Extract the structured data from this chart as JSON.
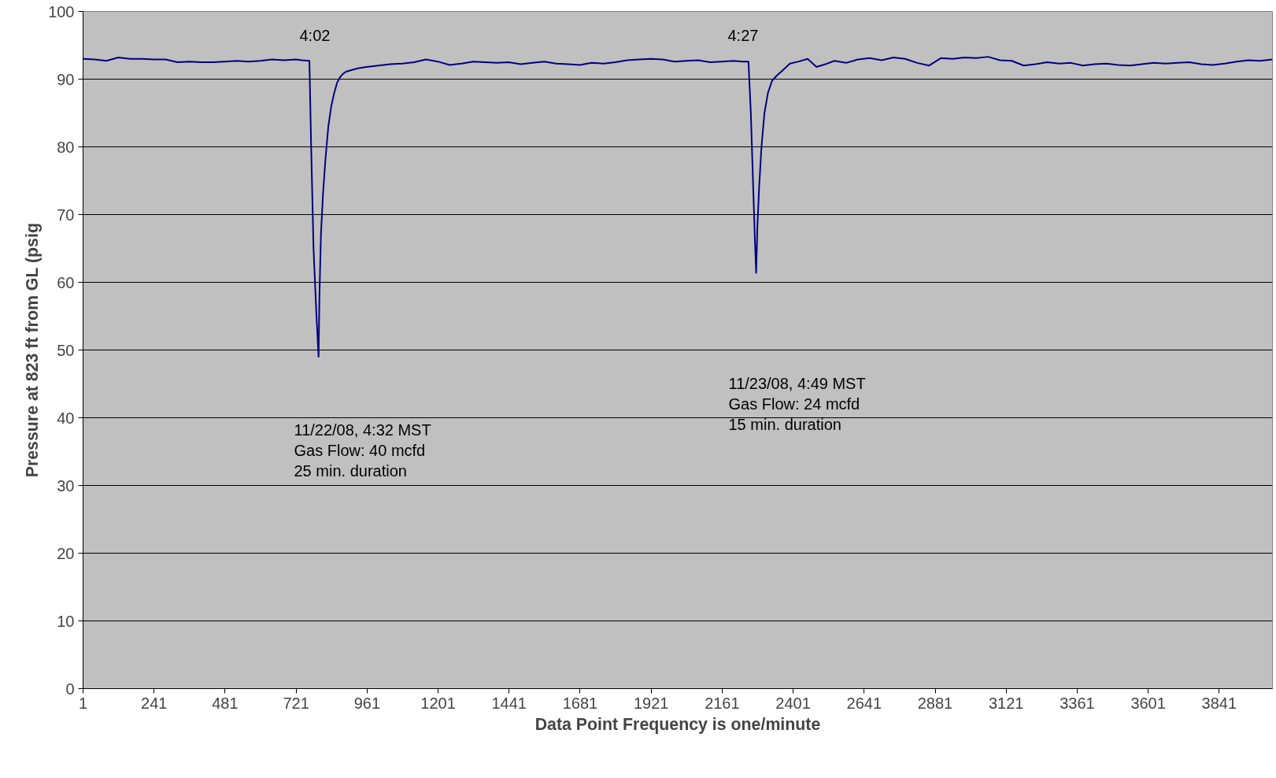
{
  "chart_data": {
    "type": "line",
    "xlabel": "Data Point Frequency is one/minute",
    "ylabel": "Pressure at 823 ft from GL (psig",
    "x": [
      1,
      40,
      80,
      120,
      160,
      200,
      240,
      280,
      320,
      360,
      400,
      440,
      480,
      520,
      560,
      600,
      640,
      680,
      720,
      740,
      766,
      772,
      780,
      790,
      797,
      800,
      805,
      812,
      820,
      830,
      840,
      850,
      860,
      870,
      880,
      890,
      906,
      930,
      960,
      1000,
      1040,
      1080,
      1120,
      1160,
      1200,
      1240,
      1280,
      1320,
      1360,
      1400,
      1440,
      1480,
      1520,
      1560,
      1600,
      1640,
      1680,
      1720,
      1760,
      1800,
      1840,
      1880,
      1920,
      1960,
      2000,
      2040,
      2080,
      2120,
      2160,
      2200,
      2230,
      2250,
      2258,
      2266,
      2272,
      2276,
      2280,
      2286,
      2294,
      2304,
      2316,
      2330,
      2345,
      2363,
      2390,
      2420,
      2450,
      2480,
      2510,
      2540,
      2580,
      2620,
      2660,
      2700,
      2740,
      2780,
      2820,
      2860,
      2900,
      2940,
      2980,
      3020,
      3060,
      3100,
      3140,
      3180,
      3220,
      3260,
      3300,
      3340,
      3380,
      3420,
      3460,
      3500,
      3540,
      3580,
      3620,
      3660,
      3700,
      3740,
      3780,
      3820,
      3860,
      3900,
      3940,
      3980,
      4021
    ],
    "series": [
      {
        "color": "#000080",
        "values": [
          93.0,
          92.9,
          92.7,
          93.2,
          93.0,
          93.0,
          92.9,
          92.9,
          92.5,
          92.6,
          92.5,
          92.5,
          92.6,
          92.7,
          92.6,
          92.7,
          92.9,
          92.8,
          92.9,
          92.8,
          92.7,
          80,
          65,
          55,
          49,
          58,
          67,
          73,
          78,
          83,
          86,
          88,
          89.5,
          90.3,
          90.8,
          91.1,
          91.3,
          91.6,
          91.8,
          92.0,
          92.2,
          92.3,
          92.5,
          92.9,
          92.6,
          92.1,
          92.3,
          92.6,
          92.5,
          92.4,
          92.5,
          92.2,
          92.4,
          92.6,
          92.3,
          92.2,
          92.1,
          92.4,
          92.3,
          92.5,
          92.8,
          92.9,
          93.0,
          92.9,
          92.6,
          92.7,
          92.8,
          92.5,
          92.6,
          92.7,
          92.6,
          92.6,
          85,
          74,
          66,
          61.4,
          68,
          74,
          80,
          85,
          88,
          89.8,
          90.5,
          91.2,
          92.3,
          92.6,
          93.0,
          91.8,
          92.2,
          92.7,
          92.4,
          92.9,
          93.1,
          92.8,
          93.2,
          93.0,
          92.4,
          92.0,
          93.1,
          93.0,
          93.2,
          93.1,
          93.3,
          92.8,
          92.7,
          92.0,
          92.2,
          92.5,
          92.3,
          92.4,
          92.0,
          92.2,
          92.3,
          92.1,
          92.0,
          92.2,
          92.4,
          92.3,
          92.4,
          92.5,
          92.2,
          92.1,
          92.3,
          92.6,
          92.8,
          92.7,
          92.9
        ]
      }
    ],
    "xlim": [
      1,
      4021
    ],
    "xticks": [
      1,
      241,
      481,
      721,
      961,
      1201,
      1441,
      1681,
      1921,
      2161,
      2401,
      2641,
      2881,
      3121,
      3361,
      3601,
      3841
    ],
    "ylim": [
      0,
      100
    ],
    "yticks": [
      0,
      10,
      20,
      30,
      40,
      50,
      60,
      70,
      80,
      90,
      100
    ],
    "grid": "y",
    "marker": "none",
    "line_style": "solid",
    "annotations": [
      "4:02",
      "4:27",
      "11/22/08, 4:32 MST\nGas Flow:  40 mcfd\n 25 min. duration",
      "11/23/08, 4:49 MST\nGas Flow:  24 mcfd\n 15 min. duration"
    ]
  }
}
